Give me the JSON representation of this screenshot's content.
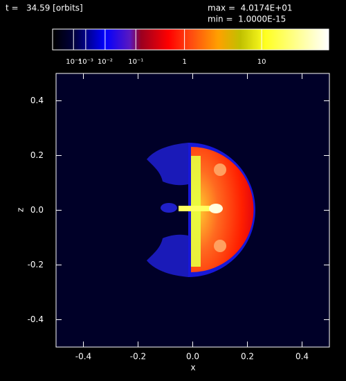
{
  "chart_data": {
    "type": "image",
    "annotations": [
      "t =   34.59 [orbits]",
      "max =  4.0174E+01",
      "min =  1.0000E-15"
    ],
    "xlabel": "x",
    "ylabel": "z",
    "xlim": [
      -0.5,
      0.5
    ],
    "ylim": [
      -0.5,
      0.5
    ],
    "xticks": [
      -0.4,
      -0.2,
      {
        "value": 0,
        "label": "0.0"
      },
      0.2,
      0.4
    ],
    "yticks": [
      -0.4,
      -0.2,
      {
        "value": 0,
        "label": "0.0"
      },
      0.2,
      0.4
    ],
    "colorbar": {
      "scale": "power",
      "exponent": 0.2,
      "lim": [
        0,
        40.174
      ],
      "ticks": [
        {
          "value": 0.0001,
          "label": "10⁻⁴"
        },
        {
          "value": 0.001,
          "label": "10⁻³"
        },
        {
          "value": 0.01,
          "label": "10⁻²"
        },
        {
          "value": 0.1,
          "label": "10⁻¹"
        },
        1,
        10
      ]
    }
  }
}
